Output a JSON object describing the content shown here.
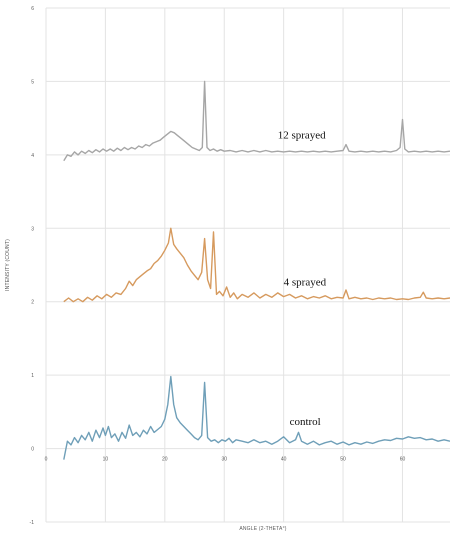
{
  "chart_data": {
    "type": "line",
    "xlabel": "ANGLE (2-THETA°)",
    "ylabel": "INTENSITY (COUNT)",
    "xlim": [
      0,
      68
    ],
    "ylim": [
      -1,
      6
    ],
    "x_ticks": [
      0,
      10,
      20,
      30,
      40,
      50,
      60
    ],
    "y_ticks": [
      -1,
      0,
      1,
      2,
      3,
      4,
      5,
      6
    ],
    "grid": true,
    "series": [
      {
        "name": "control",
        "color": "#6f9fb8",
        "points": [
          [
            3,
            -0.15
          ],
          [
            3.6,
            0.1
          ],
          [
            4.2,
            0.05
          ],
          [
            4.8,
            0.15
          ],
          [
            5.4,
            0.08
          ],
          [
            6,
            0.18
          ],
          [
            6.6,
            0.12
          ],
          [
            7.2,
            0.22
          ],
          [
            7.8,
            0.1
          ],
          [
            8.4,
            0.25
          ],
          [
            9,
            0.15
          ],
          [
            9.6,
            0.28
          ],
          [
            10,
            0.18
          ],
          [
            10.5,
            0.3
          ],
          [
            11,
            0.15
          ],
          [
            11.6,
            0.2
          ],
          [
            12.2,
            0.1
          ],
          [
            12.8,
            0.22
          ],
          [
            13.4,
            0.14
          ],
          [
            14,
            0.32
          ],
          [
            14.6,
            0.18
          ],
          [
            15.2,
            0.22
          ],
          [
            15.8,
            0.16
          ],
          [
            16.4,
            0.25
          ],
          [
            17,
            0.2
          ],
          [
            17.6,
            0.3
          ],
          [
            18.2,
            0.22
          ],
          [
            18.8,
            0.26
          ],
          [
            19.4,
            0.3
          ],
          [
            20,
            0.4
          ],
          [
            20.5,
            0.6
          ],
          [
            21,
            0.98
          ],
          [
            21.5,
            0.6
          ],
          [
            22,
            0.42
          ],
          [
            22.6,
            0.35
          ],
          [
            23.2,
            0.3
          ],
          [
            23.8,
            0.25
          ],
          [
            24.4,
            0.2
          ],
          [
            25,
            0.15
          ],
          [
            25.6,
            0.12
          ],
          [
            26.2,
            0.18
          ],
          [
            26.7,
            0.9
          ],
          [
            27.2,
            0.15
          ],
          [
            27.8,
            0.1
          ],
          [
            28.4,
            0.12
          ],
          [
            29,
            0.08
          ],
          [
            29.6,
            0.12
          ],
          [
            30.2,
            0.1
          ],
          [
            30.8,
            0.14
          ],
          [
            31.4,
            0.08
          ],
          [
            32,
            0.12
          ],
          [
            33,
            0.1
          ],
          [
            34,
            0.08
          ],
          [
            35,
            0.12
          ],
          [
            36,
            0.08
          ],
          [
            37,
            0.1
          ],
          [
            38,
            0.06
          ],
          [
            39,
            0.1
          ],
          [
            40,
            0.16
          ],
          [
            41,
            0.08
          ],
          [
            42,
            0.12
          ],
          [
            42.5,
            0.22
          ],
          [
            43,
            0.1
          ],
          [
            44,
            0.06
          ],
          [
            45,
            0.1
          ],
          [
            46,
            0.05
          ],
          [
            47,
            0.08
          ],
          [
            48,
            0.1
          ],
          [
            49,
            0.06
          ],
          [
            50,
            0.09
          ],
          [
            51,
            0.05
          ],
          [
            52,
            0.08
          ],
          [
            53,
            0.06
          ],
          [
            54,
            0.09
          ],
          [
            55,
            0.07
          ],
          [
            56,
            0.1
          ],
          [
            57,
            0.12
          ],
          [
            58,
            0.11
          ],
          [
            59,
            0.14
          ],
          [
            60,
            0.13
          ],
          [
            61,
            0.16
          ],
          [
            62,
            0.14
          ],
          [
            63,
            0.15
          ],
          [
            64,
            0.12
          ],
          [
            65,
            0.13
          ],
          [
            66,
            0.1
          ],
          [
            67,
            0.12
          ],
          [
            68,
            0.1
          ]
        ]
      },
      {
        "name": "4 sprayed",
        "color": "#d69a5e",
        "points": [
          [
            3,
            2.0
          ],
          [
            3.8,
            2.05
          ],
          [
            4.6,
            2.0
          ],
          [
            5.4,
            2.04
          ],
          [
            6.2,
            2.0
          ],
          [
            7,
            2.06
          ],
          [
            7.8,
            2.02
          ],
          [
            8.6,
            2.08
          ],
          [
            9.4,
            2.04
          ],
          [
            10.2,
            2.1
          ],
          [
            11,
            2.06
          ],
          [
            11.8,
            2.12
          ],
          [
            12.6,
            2.1
          ],
          [
            13.4,
            2.18
          ],
          [
            14,
            2.28
          ],
          [
            14.6,
            2.22
          ],
          [
            15.2,
            2.3
          ],
          [
            15.8,
            2.34
          ],
          [
            16.4,
            2.38
          ],
          [
            17,
            2.42
          ],
          [
            17.6,
            2.45
          ],
          [
            18.2,
            2.52
          ],
          [
            18.8,
            2.56
          ],
          [
            19.4,
            2.62
          ],
          [
            20,
            2.7
          ],
          [
            20.6,
            2.8
          ],
          [
            21,
            3.0
          ],
          [
            21.5,
            2.78
          ],
          [
            22,
            2.72
          ],
          [
            22.6,
            2.66
          ],
          [
            23.2,
            2.6
          ],
          [
            23.8,
            2.5
          ],
          [
            24.4,
            2.42
          ],
          [
            25,
            2.36
          ],
          [
            25.6,
            2.3
          ],
          [
            26.2,
            2.4
          ],
          [
            26.7,
            2.86
          ],
          [
            27.2,
            2.3
          ],
          [
            27.7,
            2.18
          ],
          [
            28.2,
            2.95
          ],
          [
            28.7,
            2.1
          ],
          [
            29.2,
            2.14
          ],
          [
            29.8,
            2.08
          ],
          [
            30.4,
            2.2
          ],
          [
            31,
            2.06
          ],
          [
            31.6,
            2.12
          ],
          [
            32.2,
            2.04
          ],
          [
            33,
            2.1
          ],
          [
            34,
            2.06
          ],
          [
            35,
            2.12
          ],
          [
            36,
            2.05
          ],
          [
            37,
            2.1
          ],
          [
            38,
            2.06
          ],
          [
            39,
            2.12
          ],
          [
            40,
            2.07
          ],
          [
            41,
            2.1
          ],
          [
            42,
            2.05
          ],
          [
            43,
            2.08
          ],
          [
            44,
            2.04
          ],
          [
            45,
            2.07
          ],
          [
            46,
            2.05
          ],
          [
            47,
            2.08
          ],
          [
            48,
            2.04
          ],
          [
            49,
            2.06
          ],
          [
            50,
            2.05
          ],
          [
            50.5,
            2.16
          ],
          [
            51,
            2.04
          ],
          [
            52,
            2.06
          ],
          [
            53,
            2.04
          ],
          [
            54,
            2.05
          ],
          [
            55,
            2.03
          ],
          [
            56,
            2.05
          ],
          [
            57,
            2.04
          ],
          [
            58,
            2.05
          ],
          [
            59,
            2.03
          ],
          [
            60,
            2.04
          ],
          [
            61,
            2.03
          ],
          [
            62,
            2.05
          ],
          [
            63,
            2.06
          ],
          [
            63.5,
            2.13
          ],
          [
            64,
            2.05
          ],
          [
            65,
            2.04
          ],
          [
            66,
            2.05
          ],
          [
            67,
            2.04
          ],
          [
            68,
            2.05
          ]
        ]
      },
      {
        "name": "12 sprayed",
        "color": "#a6a6a6",
        "points": [
          [
            3,
            3.92
          ],
          [
            3.6,
            4.0
          ],
          [
            4.2,
            3.98
          ],
          [
            4.8,
            4.04
          ],
          [
            5.4,
            4.0
          ],
          [
            6,
            4.05
          ],
          [
            6.6,
            4.02
          ],
          [
            7.2,
            4.06
          ],
          [
            7.8,
            4.03
          ],
          [
            8.4,
            4.07
          ],
          [
            9,
            4.04
          ],
          [
            9.6,
            4.08
          ],
          [
            10.2,
            4.05
          ],
          [
            10.8,
            4.08
          ],
          [
            11.4,
            4.05
          ],
          [
            12,
            4.09
          ],
          [
            12.6,
            4.06
          ],
          [
            13.2,
            4.1
          ],
          [
            13.8,
            4.07
          ],
          [
            14.4,
            4.1
          ],
          [
            15,
            4.08
          ],
          [
            15.6,
            4.12
          ],
          [
            16.2,
            4.1
          ],
          [
            16.8,
            4.14
          ],
          [
            17.4,
            4.12
          ],
          [
            18,
            4.16
          ],
          [
            18.6,
            4.18
          ],
          [
            19.2,
            4.2
          ],
          [
            19.8,
            4.24
          ],
          [
            20.4,
            4.28
          ],
          [
            21,
            4.32
          ],
          [
            21.6,
            4.3
          ],
          [
            22.2,
            4.26
          ],
          [
            22.8,
            4.22
          ],
          [
            23.4,
            4.18
          ],
          [
            24,
            4.14
          ],
          [
            24.6,
            4.1
          ],
          [
            25.2,
            4.08
          ],
          [
            25.8,
            4.06
          ],
          [
            26.3,
            4.1
          ],
          [
            26.7,
            5.0
          ],
          [
            27.1,
            4.1
          ],
          [
            27.6,
            4.06
          ],
          [
            28.2,
            4.08
          ],
          [
            28.8,
            4.05
          ],
          [
            29.4,
            4.07
          ],
          [
            30,
            4.05
          ],
          [
            31,
            4.06
          ],
          [
            32,
            4.04
          ],
          [
            33,
            4.06
          ],
          [
            34,
            4.04
          ],
          [
            35,
            4.06
          ],
          [
            36,
            4.04
          ],
          [
            37,
            4.06
          ],
          [
            38,
            4.04
          ],
          [
            39,
            4.05
          ],
          [
            40,
            4.04
          ],
          [
            41,
            4.05
          ],
          [
            42,
            4.04
          ],
          [
            43,
            4.05
          ],
          [
            44,
            4.04
          ],
          [
            45,
            4.05
          ],
          [
            46,
            4.04
          ],
          [
            47,
            4.05
          ],
          [
            48,
            4.04
          ],
          [
            49,
            4.05
          ],
          [
            50,
            4.06
          ],
          [
            50.5,
            4.14
          ],
          [
            51,
            4.05
          ],
          [
            52,
            4.04
          ],
          [
            53,
            4.05
          ],
          [
            54,
            4.04
          ],
          [
            55,
            4.05
          ],
          [
            56,
            4.04
          ],
          [
            57,
            4.05
          ],
          [
            58,
            4.04
          ],
          [
            59,
            4.06
          ],
          [
            59.6,
            4.1
          ],
          [
            60,
            4.48
          ],
          [
            60.4,
            4.08
          ],
          [
            61,
            4.04
          ],
          [
            62,
            4.05
          ],
          [
            63,
            4.04
          ],
          [
            64,
            4.05
          ],
          [
            65,
            4.04
          ],
          [
            66,
            4.05
          ],
          [
            67,
            4.04
          ],
          [
            68,
            4.05
          ]
        ]
      }
    ]
  }
}
